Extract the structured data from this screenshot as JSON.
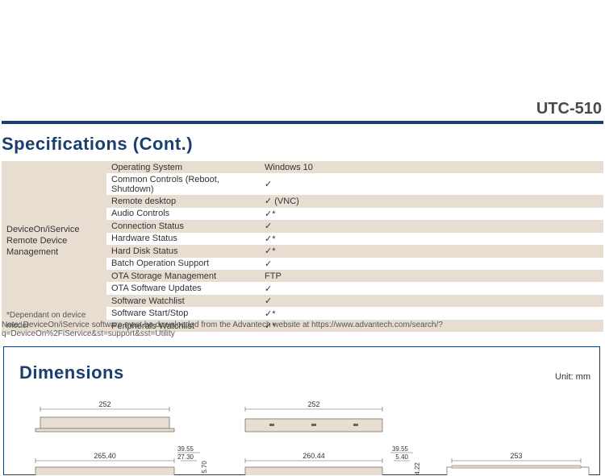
{
  "product_title": "UTC-510",
  "colors": {
    "rule": "#1a3e6e",
    "heading": "#1a3e6e",
    "row_a": "#e7ded1",
    "row_b": "#ffffff",
    "shape_fill": "#e7ded1",
    "shape_stroke": "#7a7268",
    "dim_line": "#5a5a5a",
    "hatch": "#c9a95a"
  },
  "specs": {
    "section_title": "Specifications (Cont.)",
    "category_line1": "DeviceOn/iService",
    "category_line2": "Remote Device Management",
    "dependant_note": "*Dependant on device model",
    "rows": [
      {
        "key": "Operating System",
        "val": "Windows 10"
      },
      {
        "key": "Common Controls (Reboot, Shutdown)",
        "val": "✓"
      },
      {
        "key": "Remote desktop",
        "val": "✓ (VNC)"
      },
      {
        "key": "Audio Controls",
        "val": "✓*"
      },
      {
        "key": "Connection Status",
        "val": "✓"
      },
      {
        "key": "Hardware Status",
        "val": "✓*"
      },
      {
        "key": "Hard Disk Status",
        "val": "✓*"
      },
      {
        "key": "Batch Operation Support",
        "val": "✓"
      },
      {
        "key": "OTA Storage Management",
        "val": "FTP"
      },
      {
        "key": "OTA Software Updates",
        "val": "✓"
      },
      {
        "key": "Software Watchlist",
        "val": "✓"
      },
      {
        "key": "Software Start/Stop",
        "val": "✓*"
      },
      {
        "key": "Peripherals Watchlist",
        "val": "✓*"
      }
    ],
    "note": "Note: DeviceOn/iService software must be downloaded from the Advantech website at https://www.advantech.com/search/?q=DeviceOn%2FiService&st=support&sst=Utility"
  },
  "dimensions": {
    "section_title": "Dimensions",
    "unit_label": "Unit: mm",
    "labels": {
      "a_top": "252",
      "b_top": "252",
      "a_bottom": "265.40",
      "b_bottom": "260.44",
      "c_bottom": "253",
      "small_39a": "39.55",
      "small_27": "27.30",
      "small_570": "5.70",
      "small_39b": "39.55",
      "small_540": "5.40",
      "small_422": "4.22"
    }
  }
}
